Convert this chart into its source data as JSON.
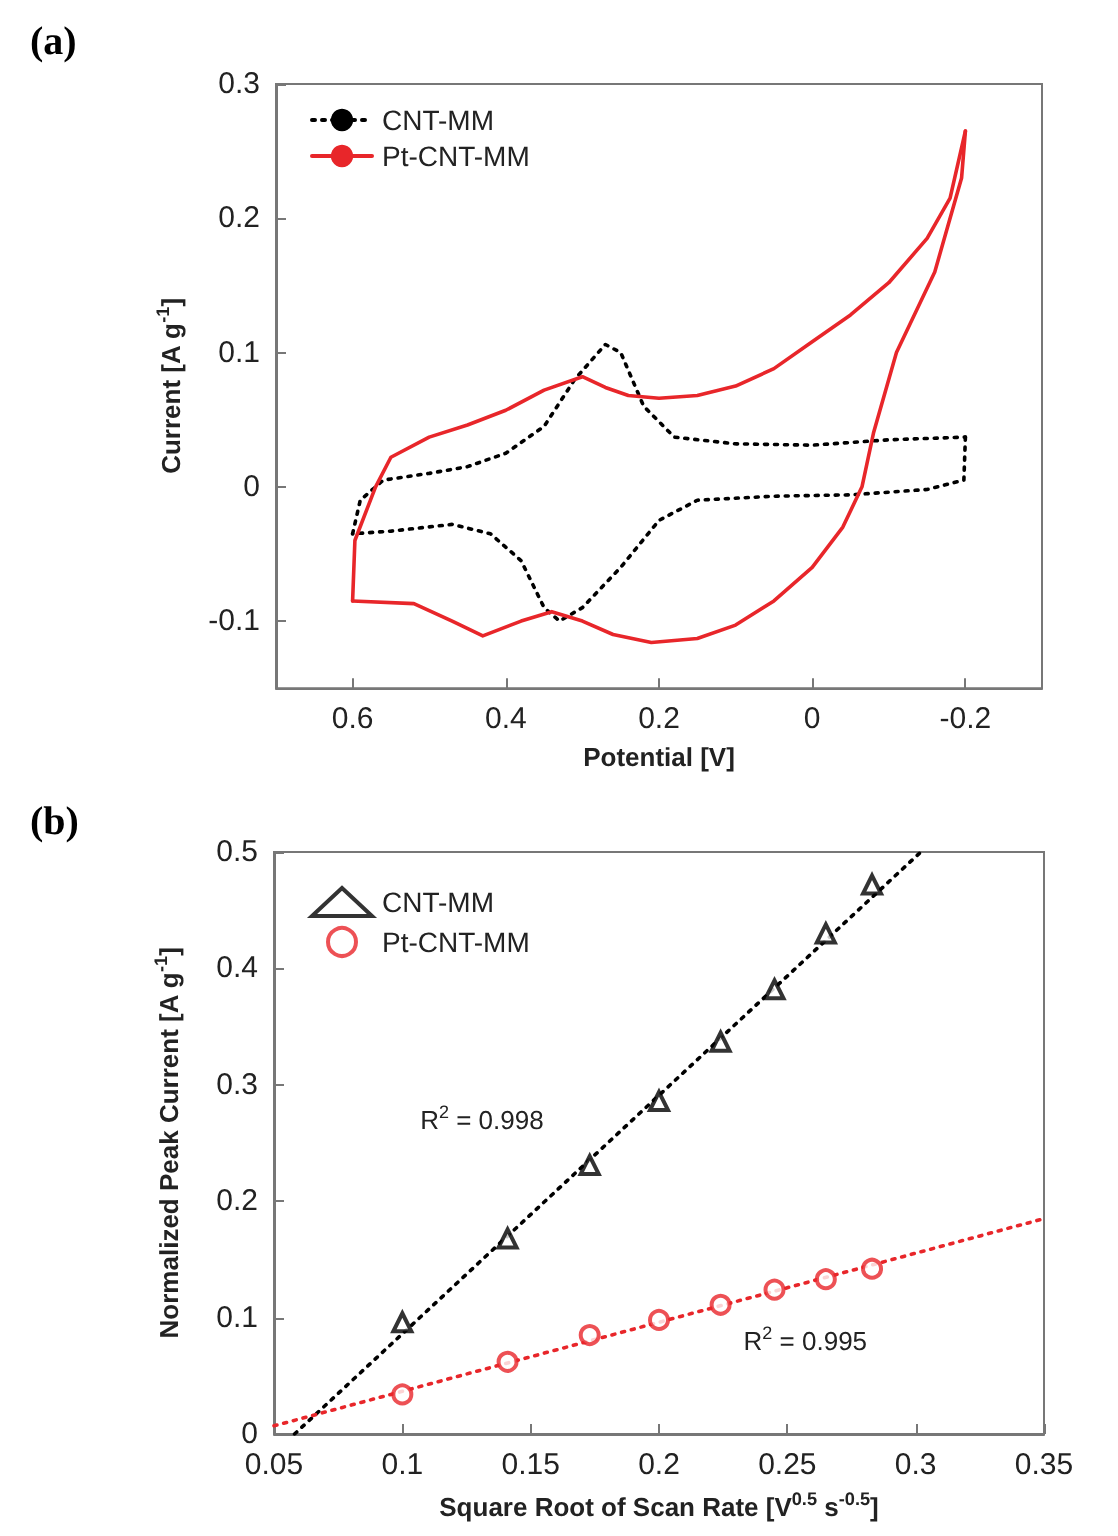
{
  "chart_data": [
    {
      "type": "line",
      "title": "(a)",
      "xlabel": "Potential [V]",
      "ylabel": "Current [A g$^{-1}$]",
      "xlim": [
        0.7,
        -0.3
      ],
      "xticks": [
        0.6,
        0.4,
        0.2,
        0,
        -0.2
      ],
      "ylim": [
        -0.15,
        0.3
      ],
      "yticks": [
        -0.1,
        0,
        0.1,
        0.2,
        0.3
      ],
      "legend": "top left",
      "grid": false,
      "marker": "none",
      "series": [
        {
          "name": "CNT-MM",
          "color": "#000000",
          "line_style": "dotted",
          "x": [
            0.6,
            0.59,
            0.56,
            0.5,
            0.45,
            0.4,
            0.35,
            0.31,
            0.27,
            0.25,
            0.22,
            0.18,
            0.1,
            0,
            -0.1,
            -0.2
          ],
          "values": [
            -0.035,
            -0.01,
            0.005,
            0.01,
            0.015,
            0.025,
            0.045,
            0.08,
            0.106,
            0.1,
            0.06,
            0.037,
            0.032,
            0.031,
            0.035,
            0.037
          ]
        },
        {
          "color": "#000000",
          "line_style": "dotted",
          "x": [
            -0.2,
            -0.198,
            -0.15,
            -0.05,
            0.05,
            0.15,
            0.2,
            0.25,
            0.3,
            0.33,
            0.35,
            0.38,
            0.42,
            0.47,
            0.55,
            0.6
          ],
          "values": [
            0.037,
            0.005,
            -0.002,
            -0.006,
            -0.007,
            -0.01,
            -0.025,
            -0.06,
            -0.09,
            -0.1,
            -0.09,
            -0.055,
            -0.035,
            -0.028,
            -0.033,
            -0.035
          ]
        },
        {
          "name": "Pt-CNT-MM",
          "color": "#e8262a",
          "line_style": "solid",
          "x": [
            0.6,
            0.597,
            0.57,
            0.55,
            0.5,
            0.45,
            0.4,
            0.35,
            0.3,
            0.27,
            0.24,
            0.2,
            0.15,
            0.1,
            0.05,
            0,
            -0.05,
            -0.1,
            -0.15,
            -0.18,
            -0.2
          ],
          "values": [
            -0.085,
            -0.04,
            0,
            0.022,
            0.037,
            0.046,
            0.057,
            0.072,
            0.082,
            0.074,
            0.068,
            0.066,
            0.068,
            0.075,
            0.088,
            0.108,
            0.128,
            0.152,
            0.185,
            0.215,
            0.265
          ]
        },
        {
          "color": "#e8262a",
          "line_style": "solid",
          "x": [
            -0.2,
            -0.195,
            -0.16,
            -0.11,
            -0.08,
            -0.065,
            -0.04,
            0,
            0.05,
            0.1,
            0.15,
            0.21,
            0.26,
            0.3,
            0.34,
            0.38,
            0.43,
            0.47,
            0.52,
            0.6
          ],
          "values": [
            0.265,
            0.23,
            0.16,
            0.1,
            0.04,
            0,
            -0.03,
            -0.06,
            -0.085,
            -0.103,
            -0.113,
            -0.116,
            -0.11,
            -0.1,
            -0.093,
            -0.1,
            -0.111,
            -0.1,
            -0.087,
            -0.085
          ]
        }
      ]
    },
    {
      "type": "scatter",
      "title": "(b)",
      "xlabel": "Square Root of Scan Rate [V$^{0.5}$ s$^{-0.5}$]",
      "ylabel": "Normalized Peak Current [A g$^{-1}$]",
      "xlim": [
        0.05,
        0.35
      ],
      "xticks": [
        0.05,
        0.1,
        0.15,
        0.2,
        0.25,
        0.3,
        0.35
      ],
      "ylim": [
        0,
        0.5
      ],
      "yticks": [
        0,
        0.1,
        0.2,
        0.3,
        0.4,
        0.5
      ],
      "legend": "top left",
      "grid": false,
      "series": [
        {
          "name": "CNT-MM",
          "color": "#000000",
          "marker": "triangle",
          "x": [
            0.1,
            0.141,
            0.173,
            0.2,
            0.224,
            0.245,
            0.265,
            0.283
          ],
          "values": [
            0.096,
            0.168,
            0.231,
            0.286,
            0.337,
            0.382,
            0.43,
            0.472
          ]
        },
        {
          "name": "Pt-CNT-MM",
          "color": "#e8262a",
          "marker": "circle",
          "x": [
            0.1,
            0.141,
            0.173,
            0.2,
            0.224,
            0.245,
            0.265,
            0.283
          ],
          "values": [
            0.034,
            0.062,
            0.085,
            0.098,
            0.111,
            0.124,
            0.133,
            0.142
          ]
        },
        {
          "type": "line",
          "color": "#000000",
          "line_style": "dotted",
          "marker": "none",
          "x": [
            0.058,
            0.302
          ],
          "values": [
            0,
            0.5
          ]
        },
        {
          "type": "line",
          "color": "#e8262a",
          "line_style": "dotted",
          "marker": "none",
          "x": [
            0.05,
            0.35
          ],
          "values": [
            0.007,
            0.185
          ]
        }
      ],
      "annotations": [
        "R$^{2}$ = 0.998",
        "R$^{2}$ = 0.995"
      ]
    }
  ]
}
